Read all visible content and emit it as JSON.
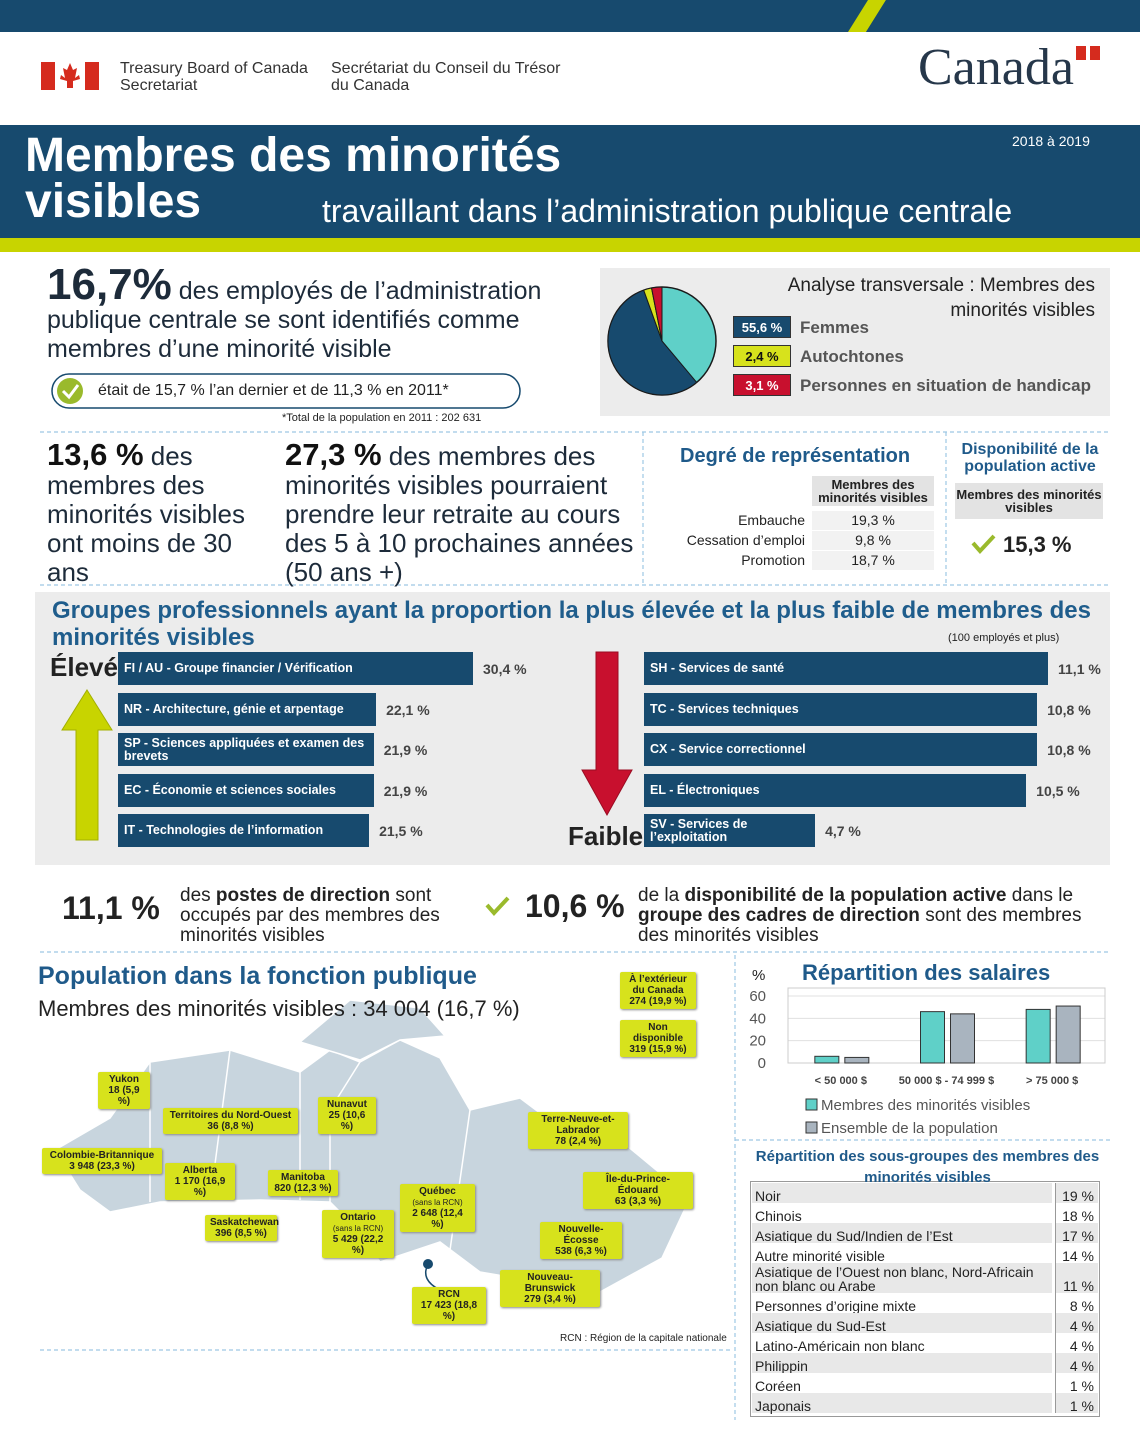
{
  "header": {
    "dept_en": "Treasury Board of Canada Secretariat",
    "dept_fr": "Secrétariat du Conseil du Trésor du Canada",
    "wordmark": "Canada"
  },
  "banner": {
    "title": "Membres des minorités visibles",
    "subtitle": "travaillant dans l’administration publique centrale",
    "period": "2018 à 2019"
  },
  "headline": {
    "value": "16,7%",
    "text": "des employés de l’administration publique centrale se sont identifiés comme membres d’une minorité visible",
    "note": "était de 15,7 % l’an dernier et de 11,3 % en 2011*",
    "footnote": "*Total de la population en 2011 : 202 631"
  },
  "age": {
    "value": "13,6 %",
    "text": "des membres des minorités visibles ont moins de 30 ans"
  },
  "retirement": {
    "value": "27,3 %",
    "text": "des membres des minorités visibles pourraient prendre leur retraite au cours des 5 à 10 prochaines années (50 ans +)"
  },
  "representation": {
    "title": "Degré de représentation",
    "column": "Membres des minorités visibles",
    "rows": [
      [
        "Embauche",
        "19,3 %"
      ],
      [
        "Cessation d’emploi",
        "9,8 %"
      ],
      [
        "Promotion",
        "18,7 %"
      ]
    ]
  },
  "availability": {
    "title": "Disponibilité de la population active",
    "column": "Membres des minorités visibles",
    "value": "15,3 %"
  },
  "groups": {
    "title": "Groupes professionnels ayant la proportion la plus élevée et la plus faible de membres des minorités visibles",
    "note": "(100 employés et plus)",
    "high_label": "Élevé",
    "low_label": "Faible"
  },
  "executives": {
    "value": "11,1 %",
    "parts": [
      "des ",
      "postes de direction",
      " sont occupés par des membres des minorités visibles"
    ]
  },
  "exec_availability": {
    "value": "10,6 %",
    "parts": [
      "de la ",
      "disponibilité de la population active",
      " dans le ",
      "groupe des cadres de direction",
      " sont des membres des minorités visibles"
    ]
  },
  "population": {
    "title": "Population dans la fonction publique",
    "subtitle": "Membres des minorités visibles : 34 004 (16,7 %)",
    "note": "RCN : Région de la capitale nationale",
    "regions": [
      {
        "name": "À l’extérieur du Canada",
        "value": "274 (19,9 %)"
      },
      {
        "name": "Non disponible",
        "value": "319 (15,9 %)"
      },
      {
        "name": "Yukon",
        "value": "18 (5,9 %)"
      },
      {
        "name": "Nunavut",
        "value": "25 (10,6 %)"
      },
      {
        "name": "Territoires du Nord-Ouest",
        "value": "36 (8,8 %)"
      },
      {
        "name": "Terre-Neuve-et-Labrador",
        "value": "78 (2,4 %)"
      },
      {
        "name": "Colombie-Britannique",
        "value": "3 948 (23,3 %)"
      },
      {
        "name": "Alberta",
        "value": "1 170 (16,9 %)"
      },
      {
        "name": "Manitoba",
        "value": "820 (12,3 %)"
      },
      {
        "name": "Île-du-Prince-Édouard",
        "value": "63 (3,3 %)"
      },
      {
        "name": "Québec",
        "qualifier": "(sans la RCN)",
        "value": "2 648 (12,4 %)"
      },
      {
        "name": "Saskatchewan",
        "value": "396 (8,5 %)"
      },
      {
        "name": "Ontario",
        "qualifier": "(sans la RCN)",
        "value": "5 429 (22,2 %)"
      },
      {
        "name": "Nouvelle-Écosse",
        "value": "538 (6,3 %)"
      },
      {
        "name": "Nouveau-Brunswick",
        "value": "279 (3,4 %)"
      },
      {
        "name": "RCN",
        "value": "17 423 (18,8 %)"
      }
    ]
  },
  "subgroups": {
    "title": "Répartition des sous-groupes des membres des minorités visibles",
    "rows": [
      [
        "Noir",
        "19 %"
      ],
      [
        "Chinois",
        "18 %"
      ],
      [
        "Asiatique du Sud/Indien de l’Est",
        "17 %"
      ],
      [
        "Autre minorité visible",
        "14 %"
      ],
      [
        "Asiatique de l’Ouest non blanc, Nord-Africain non blanc ou Arabe",
        "11 %"
      ],
      [
        "Personnes d’origine mixte",
        "8 %"
      ],
      [
        "Asiatique du Sud-Est",
        "4 %"
      ],
      [
        "Latino-Américain non blanc",
        "4 %"
      ],
      [
        "Philippin",
        "4 %"
      ],
      [
        "Coréen",
        "1 %"
      ],
      [
        "Japonais",
        "1 %"
      ]
    ]
  },
  "chart_data": [
    {
      "type": "pie",
      "title": "Analyse transversale : Membres des minorités visibles",
      "categories": [
        "Femmes",
        "Autochtones",
        "Personnes en situation de handicap"
      ],
      "values": [
        55.6,
        2.4,
        3.1
      ],
      "value_labels": [
        "55,6 %",
        "2,4 %",
        "3,1 %"
      ],
      "colors": [
        "#174a6e",
        "#d7e21c",
        "#c8102e"
      ]
    },
    {
      "type": "hbar",
      "color": "#174a6e",
      "categories": [
        "FI / AU - Groupe financier / Vérification",
        "NR - Architecture, génie et arpentage",
        "SP - Sciences appliquées et examen des brevets",
        "EC - Économie et sciences sociales",
        "IT - Technologies de l’information"
      ],
      "values": [
        30.4,
        22.1,
        21.9,
        21.9,
        21.5
      ],
      "value_labels": [
        "30,4 %",
        "22,1 %",
        "21,9 %",
        "21,9 %",
        "21,5 %"
      ]
    },
    {
      "type": "hbar",
      "color": "#174a6e",
      "categories": [
        "SH - Services de santé",
        "TC - Services techniques",
        "CX - Service correctionnel",
        "EL - Électroniques",
        "SV - Services de l’exploitation"
      ],
      "values": [
        11.1,
        10.8,
        10.8,
        10.5,
        4.7
      ],
      "value_labels": [
        "11,1 %",
        "10,8 %",
        "10,8 %",
        "10,5 %",
        "4,7 %"
      ]
    },
    {
      "type": "bar",
      "title": "Répartition des salaires",
      "y_label": "%",
      "categories": [
        "< 50 000 $",
        "50 000 $ - 74 999 $",
        "> 75 000 $"
      ],
      "series": [
        {
          "name": "Membres des minorités visibles",
          "color": "#5fd0c8",
          "values": [
            6,
            46,
            48
          ]
        },
        {
          "name": "Ensemble de la population",
          "color": "#a9b4bf",
          "values": [
            5,
            44,
            51
          ]
        }
      ],
      "ylim": [
        0,
        60
      ],
      "yticks": [
        0,
        20,
        40,
        60
      ],
      "grid": true
    }
  ]
}
